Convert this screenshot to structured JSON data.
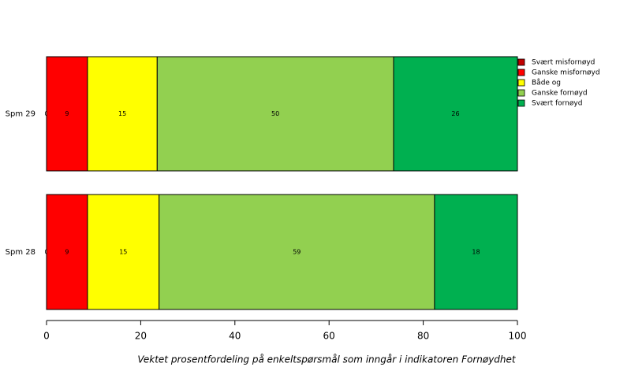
{
  "chart_data": {
    "type": "stacked-bar-horizontal",
    "xlabel": "Vektet prosentfordeling på enkeltspørsmål som inngår i indikatoren Fornøydhet",
    "categories": [
      "Spm 29",
      "Spm 28"
    ],
    "series": [
      {
        "name": "Svært misfornøyd",
        "color": "#c00000",
        "values": [
          0,
          0
        ],
        "value_labels": [
          "0",
          "0"
        ]
      },
      {
        "name": "Ganske misfornøyd",
        "color": "#ff0000",
        "values": [
          8.7,
          8.7
        ],
        "value_labels": [
          "9",
          "9"
        ]
      },
      {
        "name": "Både og",
        "color": "#ffff00",
        "values": [
          14.8,
          15.2
        ],
        "value_labels": [
          "15",
          "15"
        ]
      },
      {
        "name": "Ganske fornøyd",
        "color": "#92d050",
        "values": [
          50.2,
          58.5
        ],
        "value_labels": [
          "50",
          "59"
        ]
      },
      {
        "name": "Svært fornøyd",
        "color": "#00b050",
        "values": [
          26.3,
          17.6
        ],
        "value_labels": [
          "26",
          "18"
        ]
      }
    ],
    "xlim": [
      0,
      100
    ],
    "xticks": [
      0,
      20,
      40,
      60,
      80,
      100
    ],
    "legend": "right"
  }
}
